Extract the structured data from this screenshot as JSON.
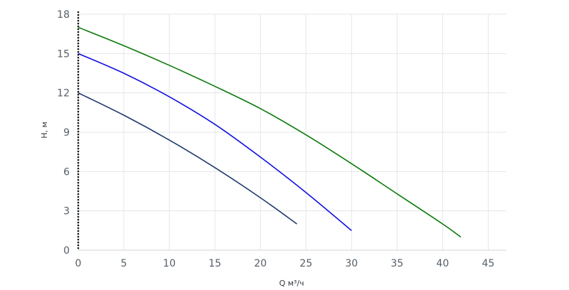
{
  "chart_data": {
    "type": "line",
    "xlabel": "Q м³/ч",
    "ylabel": "H, м",
    "xlim": [
      0,
      47
    ],
    "ylim": [
      0,
      18
    ],
    "x_ticks": [
      0,
      5,
      10,
      15,
      20,
      25,
      30,
      35,
      40,
      45
    ],
    "y_ticks": [
      0,
      3,
      6,
      9,
      12,
      15,
      18
    ],
    "grid": true,
    "legend": "none",
    "series": [
      {
        "color": "#1f3a6b",
        "x": [
          0,
          5,
          10,
          15,
          20,
          24
        ],
        "y": [
          12,
          10.3,
          8.4,
          6.3,
          4.0,
          2.0
        ]
      },
      {
        "color": "#1010e0",
        "x": [
          0,
          5,
          10,
          15,
          20,
          25,
          30
        ],
        "y": [
          15,
          13.5,
          11.7,
          9.6,
          7.1,
          4.4,
          1.5
        ]
      },
      {
        "color": "#0a7a0a",
        "x": [
          0,
          5,
          10,
          15,
          20,
          25,
          30,
          35,
          40,
          42
        ],
        "y": [
          17,
          15.6,
          14.1,
          12.5,
          10.8,
          8.8,
          6.6,
          4.3,
          2.0,
          1.0
        ]
      }
    ]
  }
}
